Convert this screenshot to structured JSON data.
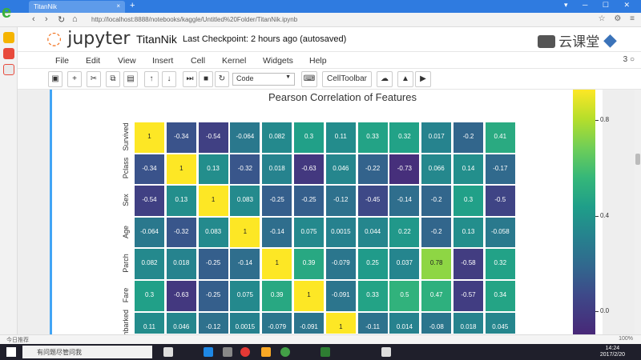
{
  "browser": {
    "tab_title": "TitanNik",
    "url": "http://localhost:8888/notebooks/kaggle/Untitled%20Folder/TitanNik.ipynb",
    "url_host": "localhost",
    "new_tab_symbol": "+",
    "close_symbol": "×"
  },
  "jupyter": {
    "logo_text": "jupyter",
    "notebook_name": "TitanNik",
    "checkpoint": "Last Checkpoint: 2 hours ago (autosaved)",
    "brand_text": "云课堂",
    "menu": [
      "File",
      "Edit",
      "View",
      "Insert",
      "Cell",
      "Kernel",
      "Widgets",
      "Help"
    ],
    "kernel_indicator": "3",
    "cell_type": "Code",
    "celltoolbar_label": "CellToolbar"
  },
  "chart_data": {
    "type": "heatmap",
    "title": "Pearson Correlation of Features",
    "rows": [
      "Survived",
      "Pclass",
      "Sex",
      "Age",
      "Parch",
      "Fare",
      "Embarked"
    ],
    "values": [
      [
        "1",
        "-0.34",
        "-0.54",
        "-0.064",
        "0.082",
        "0.3",
        "0.11",
        "0.33",
        "0.32",
        "0.017",
        "-0.2",
        "0.41"
      ],
      [
        "-0.34",
        "1",
        "0.13",
        "-0.32",
        "0.018",
        "-0.63",
        "0.046",
        "-0.22",
        "-0.73",
        "0.066",
        "0.14",
        "-0.17"
      ],
      [
        "-0.54",
        "0.13",
        "1",
        "0.083",
        "-0.25",
        "-0.25",
        "-0.12",
        "-0.45",
        "-0.14",
        "-0.2",
        "0.3",
        "-0.5"
      ],
      [
        "-0.064",
        "-0.32",
        "0.083",
        "1",
        "-0.14",
        "0.075",
        "0.0015",
        "0.044",
        "0.22",
        "-0.2",
        "0.13",
        "-0.058"
      ],
      [
        "0.082",
        "0.018",
        "-0.25",
        "-0.14",
        "1",
        "0.39",
        "-0.079",
        "0.25",
        "0.037",
        "0.78",
        "-0.58",
        "0.32"
      ],
      [
        "0.3",
        "-0.63",
        "-0.25",
        "0.075",
        "0.39",
        "1",
        "-0.091",
        "0.33",
        "0.5",
        "0.47",
        "-0.57",
        "0.34"
      ],
      [
        "0.11",
        "0.046",
        "-0.12",
        "0.0015",
        "-0.079",
        "-0.091",
        "1",
        "-0.11",
        "0.014",
        "-0.08",
        "0.018",
        "0.045"
      ]
    ],
    "colorbar_ticks": [
      "0.8",
      "0.4",
      "0.0"
    ],
    "colormap": "viridis"
  },
  "taskbar": {
    "search_placeholder": "有问题尽管问我",
    "time": "14:24",
    "date": "2017/2/20"
  },
  "status": {
    "left": "今日推荐",
    "zoom": "100%"
  }
}
